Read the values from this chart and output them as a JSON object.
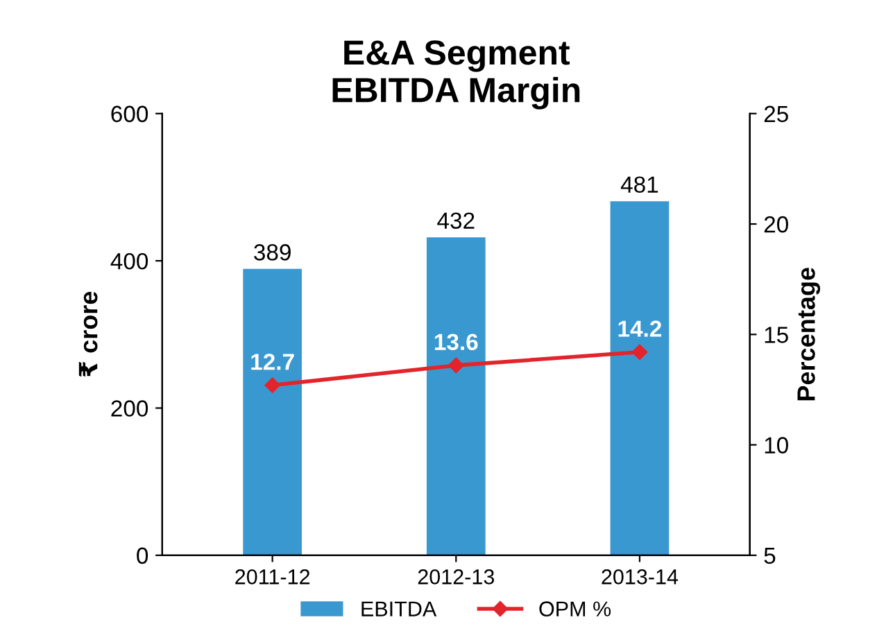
{
  "chart_data": {
    "type": "bar",
    "title": "E&A Segment\nEBITDA Margin",
    "ylabel": "₹ crore",
    "y2label": "Percentage",
    "categories": [
      "2011-12",
      "2012-13",
      "2013-14"
    ],
    "series": [
      {
        "name": "EBITDA",
        "color": "#3a98d0",
        "values": [
          389,
          432,
          481
        ]
      },
      {
        "name": "OPM %",
        "type": "line",
        "axis": "y2",
        "color": "#e3242b",
        "marker": "diamond",
        "values": [
          12.7,
          13.6,
          14.2
        ]
      }
    ],
    "ylim": [
      0,
      600
    ],
    "yticks": [
      0,
      200,
      400,
      600
    ],
    "y2lim": [
      5,
      25
    ],
    "y2ticks": [
      5,
      10,
      15,
      20,
      25
    ],
    "data_labels": true,
    "legend": "bottom",
    "grid": false
  }
}
